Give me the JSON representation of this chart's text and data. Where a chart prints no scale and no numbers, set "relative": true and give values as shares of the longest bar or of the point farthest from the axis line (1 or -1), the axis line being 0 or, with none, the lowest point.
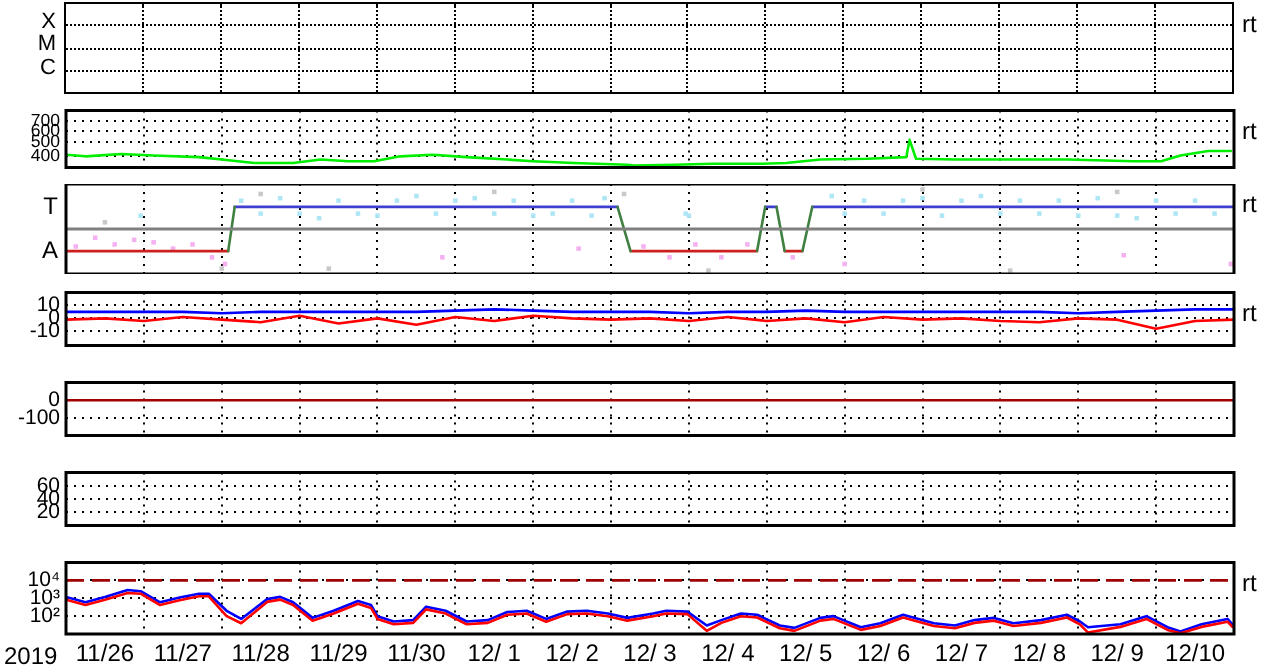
{
  "chart_data": [
    {
      "type": "other",
      "annotations": [
        "X",
        "M",
        "C",
        "rt"
      ]
    },
    {
      "type": "line",
      "xlim": [
        "2019-11-26",
        "2019-12-11"
      ],
      "ylim": [
        335,
        830
      ],
      "log": true,
      "tick_labels": "y",
      "grid": true,
      "yticks": [
        400,
        500,
        600,
        700
      ],
      "xticks": [
        {
          "value": "2019-11-27",
          "label": null
        },
        {
          "value": "2019-11-28",
          "label": null
        },
        {
          "value": "2019-11-29",
          "label": null
        },
        {
          "value": "2019-11-30",
          "label": null
        },
        {
          "value": "2019-12-01",
          "label": null
        },
        {
          "value": "2019-12-02",
          "label": null
        },
        {
          "value": "2019-12-03",
          "label": null
        },
        {
          "value": "2019-12-04",
          "label": null
        },
        {
          "value": "2019-12-05",
          "label": null
        },
        {
          "value": "2019-12-06",
          "label": null
        },
        {
          "value": "2019-12-07",
          "label": null
        },
        {
          "value": "2019-12-08",
          "label": null
        },
        {
          "value": "2019-12-09",
          "label": null
        },
        {
          "value": "2019-12-10",
          "label": null
        }
      ],
      "annotations": [
        "rt"
      ],
      "x": [
        "2019-11-26T00:00",
        "2019-11-26T06:00",
        "2019-11-26T17:00",
        "2019-11-27T03:00",
        "2019-11-27T17:00",
        "2019-11-28T00:00",
        "2019-11-28T10:00",
        "2019-11-28T22:00",
        "2019-11-29T06:30",
        "2019-11-29T15:00",
        "2019-11-29T23:00",
        "2019-11-30T07:00",
        "2019-11-30T17:00",
        "2019-12-01T03:30",
        "2019-12-01T16:00",
        "2019-12-02T00:00",
        "2019-12-02T12:30",
        "2019-12-03T05:00",
        "2019-12-03T07:00",
        "2019-12-03T19:30",
        "2019-12-04T07:30",
        "2019-12-04T22:00",
        "2019-12-05T06:00",
        "2019-12-05T16:30",
        "2019-12-06T07:00",
        "2019-12-06T19:00",
        "2019-12-06T20:00",
        "2019-12-06T22:00",
        "2019-12-07T10:00",
        "2019-12-08T00:00",
        "2019-12-08T20:30",
        "2019-12-09T17:00",
        "2019-12-10T01:30",
        "2019-12-10T07:30",
        "2019-12-10T16:00",
        "2019-12-10T23:00"
      ],
      "series": [
        {
          "color": "#00ee00",
          "values": [
            410,
            400,
            415,
            405,
            395,
            380,
            360,
            360,
            380,
            370,
            370,
            400,
            410,
            395,
            380,
            370,
            360,
            350,
            345,
            350,
            355,
            355,
            360,
            380,
            385,
            395,
            520,
            385,
            380,
            380,
            380,
            370,
            370,
            405,
            435,
            435
          ]
        }
      ]
    },
    {
      "type": "line",
      "xlim": [
        "2019-11-26",
        "2019-12-11"
      ],
      "relative": true,
      "tick_labels": "y",
      "grid": true,
      "xticks": [
        {
          "value": "2019-11-27",
          "label": null
        },
        {
          "value": "2019-11-28",
          "label": null
        },
        {
          "value": "2019-11-29",
          "label": null
        },
        {
          "value": "2019-11-30",
          "label": null
        },
        {
          "value": "2019-12-01",
          "label": null
        },
        {
          "value": "2019-12-02",
          "label": null
        },
        {
          "value": "2019-12-03",
          "label": null
        },
        {
          "value": "2019-12-04",
          "label": null
        },
        {
          "value": "2019-12-05",
          "label": null
        },
        {
          "value": "2019-12-06",
          "label": null
        },
        {
          "value": "2019-12-07",
          "label": null
        },
        {
          "value": "2019-12-08",
          "label": null
        },
        {
          "value": "2019-12-09",
          "label": null
        },
        {
          "value": "2019-12-10",
          "label": null
        }
      ],
      "annotations": [
        "T",
        "A",
        "rt"
      ],
      "series": [
        {
          "type": "scatter",
          "marker": "square",
          "color": "#c8c8c8",
          "x": [
            "2019-11-26T12:00",
            "2019-11-28T00:00",
            "2019-11-28T12:00",
            "2019-11-29T09:00",
            "2019-12-01T12:00",
            "2019-12-03T04:00",
            "2019-12-04T06:00",
            "2019-12-07T00:00",
            "2019-12-08T03:00",
            "2019-12-09T12:00"
          ],
          "values": [
            0.16,
            -0.95,
            0.84,
            -0.95,
            0.89,
            0.84,
            -1,
            0.95,
            -1,
            0.89
          ]
        },
        {
          "type": "scatter",
          "marker": "square",
          "color": "#f4b0f0",
          "x": [
            "2019-11-26T03:00",
            "2019-11-26T09:00",
            "2019-11-26T15:00",
            "2019-11-26T21:00",
            "2019-11-27T03:00",
            "2019-11-27T09:00",
            "2019-11-27T15:00",
            "2019-11-27T21:00",
            "2019-11-28T01:00",
            "2019-11-30T20:00",
            "2019-12-02T14:00",
            "2019-12-03T10:00",
            "2019-12-03T18:00",
            "2019-12-04T02:00",
            "2019-12-04T10:00",
            "2019-12-04T18:00",
            "2019-12-05T08:00",
            "2019-12-06T00:00",
            "2019-12-09T14:00",
            "2019-12-10T23:00"
          ],
          "values": [
            -0.42,
            -0.21,
            -0.37,
            -0.26,
            -0.32,
            -0.47,
            -0.37,
            -0.68,
            -0.84,
            -0.68,
            -0.47,
            -0.42,
            -0.68,
            -0.37,
            -0.68,
            -0.37,
            -0.68,
            -0.84,
            -0.63,
            -0.84
          ]
        },
        {
          "type": "scatter",
          "marker": "square",
          "color": "#aee6f6",
          "x": [
            "2019-11-26T23:00",
            "2019-11-28T06:00",
            "2019-11-28T12:00",
            "2019-11-28T18:00",
            "2019-11-29T00:00",
            "2019-11-29T06:00",
            "2019-11-29T12:00",
            "2019-11-29T18:00",
            "2019-11-30T00:00",
            "2019-11-30T06:00",
            "2019-11-30T12:00",
            "2019-11-30T18:00",
            "2019-12-01T00:00",
            "2019-12-01T06:00",
            "2019-12-01T12:00",
            "2019-12-01T18:00",
            "2019-12-02T00:00",
            "2019-12-02T06:00",
            "2019-12-02T12:00",
            "2019-12-02T18:00",
            "2019-12-02T22:00",
            "2019-12-03T23:00",
            "2019-12-04T00:00",
            "2019-12-05T20:00",
            "2019-12-06T00:00",
            "2019-12-06T06:00",
            "2019-12-06T12:00",
            "2019-12-06T18:00",
            "2019-12-07T00:00",
            "2019-12-07T06:00",
            "2019-12-07T12:00",
            "2019-12-07T18:00",
            "2019-12-08T00:00",
            "2019-12-08T06:00",
            "2019-12-08T12:00",
            "2019-12-08T18:00",
            "2019-12-09T00:00",
            "2019-12-09T06:00",
            "2019-12-09T12:00",
            "2019-12-09T18:00",
            "2019-12-10T00:00",
            "2019-12-10T06:00",
            "2019-12-10T12:00",
            "2019-12-10T18:00"
          ],
          "values": [
            0.32,
            0.68,
            0.37,
            0.74,
            0.37,
            0.26,
            0.68,
            0.37,
            0.32,
            0.68,
            0.79,
            0.37,
            0.68,
            0.74,
            0.37,
            0.68,
            0.32,
            0.37,
            0.68,
            0.32,
            0.74,
            0.37,
            0.32,
            0.79,
            0.37,
            0.68,
            0.37,
            0.68,
            0.74,
            0.32,
            0.68,
            0.79,
            0.37,
            0.68,
            0.37,
            0.68,
            0.32,
            0.74,
            0.32,
            0.26,
            0.68,
            0.37,
            0.68,
            0.37
          ]
        },
        {
          "color": "#cc2020",
          "x": [
            "2019-11-26T00:00",
            "2019-11-28T02:00",
            "2019-11-30T00:00",
            "2019-12-03T06:00",
            "2019-12-04T21:00",
            "2019-12-05T00:00",
            "2019-12-05T05:30",
            "2019-12-05T11:00"
          ],
          "values": [
            -0.53,
            -0.53,
            null,
            -0.53,
            -0.53,
            null,
            -0.53,
            -0.53
          ]
        },
        {
          "color": "#4040d0",
          "x": [
            "2019-11-28T04:00",
            "2019-12-03T02:00",
            "2019-12-03T04:00",
            "2019-12-04T23:30",
            "2019-12-05T03:00",
            "2019-12-05T04:00",
            "2019-12-05T14:00",
            "2019-12-11T00:00"
          ],
          "values": [
            0.53,
            0.53,
            null,
            0.53,
            0.53,
            null,
            0.53,
            0.53
          ]
        },
        {
          "color": "#408040",
          "x": [
            "2019-11-28T02:00",
            "2019-11-28T04:00",
            "2019-11-30T00:00",
            "2019-12-03T02:00",
            "2019-12-03T06:00",
            "2019-12-04T00:00",
            "2019-12-04T21:00",
            "2019-12-04T23:30",
            "2019-12-05T01:00",
            "2019-12-05T03:00",
            "2019-12-05T05:30",
            "2019-12-05T08:00",
            "2019-12-05T11:00",
            "2019-12-05T14:00"
          ],
          "values": [
            -0.53,
            0.53,
            null,
            0.53,
            -0.53,
            null,
            -0.53,
            0.53,
            null,
            0.53,
            -0.53,
            null,
            -0.53,
            0.53
          ]
        }
      ]
    },
    {
      "type": "line",
      "xlim": [
        "2019-11-26",
        "2019-12-11"
      ],
      "ylim": [
        -21,
        20
      ],
      "tick_labels": "y",
      "grid": true,
      "yticks": [
        10,
        0,
        -10
      ],
      "xticks": [
        {
          "value": "2019-11-27",
          "label": null
        },
        {
          "value": "2019-11-28",
          "label": null
        },
        {
          "value": "2019-11-29",
          "label": null
        },
        {
          "value": "2019-11-30",
          "label": null
        },
        {
          "value": "2019-12-01",
          "label": null
        },
        {
          "value": "2019-12-02",
          "label": null
        },
        {
          "value": "2019-12-03",
          "label": null
        },
        {
          "value": "2019-12-04",
          "label": null
        },
        {
          "value": "2019-12-05",
          "label": null
        },
        {
          "value": "2019-12-06",
          "label": null
        },
        {
          "value": "2019-12-07",
          "label": null
        },
        {
          "value": "2019-12-08",
          "label": null
        },
        {
          "value": "2019-12-09",
          "label": null
        },
        {
          "value": "2019-12-10",
          "label": null
        }
      ],
      "annotations": [
        "rt"
      ],
      "x": [
        "2019-11-26T00:00",
        "2019-11-26T12:00",
        "2019-11-27T00:00",
        "2019-11-27T12:00",
        "2019-11-28T00:00",
        "2019-11-28T12:00",
        "2019-11-29T00:00",
        "2019-11-29T12:00",
        "2019-11-30T00:00",
        "2019-11-30T12:00",
        "2019-12-01T00:00",
        "2019-12-01T12:00",
        "2019-12-02T00:00",
        "2019-12-02T12:00",
        "2019-12-03T00:00",
        "2019-12-03T12:00",
        "2019-12-04T00:00",
        "2019-12-04T12:00",
        "2019-12-05T00:00",
        "2019-12-05T12:00",
        "2019-12-06T00:00",
        "2019-12-06T12:00",
        "2019-12-07T00:00",
        "2019-12-07T12:00",
        "2019-12-08T00:00",
        "2019-12-08T12:00",
        "2019-12-09T00:00",
        "2019-12-09T12:00",
        "2019-12-10T00:00",
        "2019-12-10T12:00",
        "2019-12-11T00:00"
      ],
      "series": [
        {
          "color": "#ff0000",
          "values": [
            -1,
            0,
            -2,
            1,
            -1,
            -3,
            2,
            -4,
            0,
            -5,
            1,
            -2,
            2,
            0,
            -1,
            0,
            -2,
            1,
            -2,
            0,
            -3,
            1,
            -1,
            0,
            -2,
            -3,
            0,
            -1,
            -8,
            -2,
            -1
          ]
        },
        {
          "color": "#0000ff",
          "values": [
            5,
            5,
            5,
            5,
            4,
            5,
            5,
            5,
            5,
            5,
            6,
            7,
            6,
            5,
            5,
            5,
            4,
            5,
            5,
            6,
            5,
            5,
            5,
            5,
            5,
            5,
            4,
            5,
            6,
            7,
            7
          ]
        }
      ]
    },
    {
      "type": "line",
      "xlim": [
        "2019-11-26",
        "2019-12-11"
      ],
      "ylim": [
        -200,
        100
      ],
      "tick_labels": "y",
      "grid": true,
      "yticks": [
        0,
        -100
      ],
      "xticks": [
        {
          "value": "2019-11-27",
          "label": null
        },
        {
          "value": "2019-11-28",
          "label": null
        },
        {
          "value": "2019-11-29",
          "label": null
        },
        {
          "value": "2019-11-30",
          "label": null
        },
        {
          "value": "2019-12-01",
          "label": null
        },
        {
          "value": "2019-12-02",
          "label": null
        },
        {
          "value": "2019-12-03",
          "label": null
        },
        {
          "value": "2019-12-04",
          "label": null
        },
        {
          "value": "2019-12-05",
          "label": null
        },
        {
          "value": "2019-12-06",
          "label": null
        },
        {
          "value": "2019-12-07",
          "label": null
        },
        {
          "value": "2019-12-08",
          "label": null
        },
        {
          "value": "2019-12-09",
          "label": null
        },
        {
          "value": "2019-12-10",
          "label": null
        }
      ],
      "series": [
        {
          "color": "#a00000",
          "x": [
            "2019-11-26T00:00",
            "2019-12-11T00:00"
          ],
          "values": [
            0,
            0
          ]
        }
      ]
    },
    {
      "type": "line",
      "xlim": [
        "2019-11-26",
        "2019-12-11"
      ],
      "ylim": [
        0,
        80
      ],
      "tick_labels": "y",
      "grid": true,
      "yticks": [
        60,
        40,
        20
      ],
      "xticks": [
        {
          "value": "2019-11-27",
          "label": null
        },
        {
          "value": "2019-11-28",
          "label": null
        },
        {
          "value": "2019-11-29",
          "label": null
        },
        {
          "value": "2019-11-30",
          "label": null
        },
        {
          "value": "2019-12-01",
          "label": null
        },
        {
          "value": "2019-12-02",
          "label": null
        },
        {
          "value": "2019-12-03",
          "label": null
        },
        {
          "value": "2019-12-04",
          "label": null
        },
        {
          "value": "2019-12-05",
          "label": null
        },
        {
          "value": "2019-12-06",
          "label": null
        },
        {
          "value": "2019-12-07",
          "label": null
        },
        {
          "value": "2019-12-08",
          "label": null
        },
        {
          "value": "2019-12-09",
          "label": null
        },
        {
          "value": "2019-12-10",
          "label": null
        }
      ]
    },
    {
      "type": "line",
      "xlim": [
        "2019-11-26",
        "2019-12-11"
      ],
      "ylim": [
        10,
        100000
      ],
      "log": true,
      "grid": true,
      "xlabel": "2019",
      "yticks": [
        {
          "value": 10000,
          "label": "10⁴"
        },
        {
          "value": 1000,
          "label": "10³"
        },
        {
          "value": 100,
          "label": "10²"
        }
      ],
      "xticks": [
        {
          "value": "2019-11-26T12:00",
          "label": "11/26"
        },
        {
          "value": "2019-11-27",
          "label": null
        },
        {
          "value": "2019-11-27T12:00",
          "label": "11/27"
        },
        {
          "value": "2019-11-28",
          "label": null
        },
        {
          "value": "2019-11-28T12:00",
          "label": "11/28"
        },
        {
          "value": "2019-11-29",
          "label": null
        },
        {
          "value": "2019-11-29T12:00",
          "label": "11/29"
        },
        {
          "value": "2019-11-30",
          "label": null
        },
        {
          "value": "2019-11-30T12:00",
          "label": "11/30"
        },
        {
          "value": "2019-12-01",
          "label": null
        },
        {
          "value": "2019-12-01T12:00",
          "label": "12/ 1"
        },
        {
          "value": "2019-12-02",
          "label": null
        },
        {
          "value": "2019-12-02T12:00",
          "label": "12/ 2"
        },
        {
          "value": "2019-12-03",
          "label": null
        },
        {
          "value": "2019-12-03T12:00",
          "label": "12/ 3"
        },
        {
          "value": "2019-12-04",
          "label": null
        },
        {
          "value": "2019-12-04T12:00",
          "label": "12/ 4"
        },
        {
          "value": "2019-12-05",
          "label": null
        },
        {
          "value": "2019-12-05T12:00",
          "label": "12/ 5"
        },
        {
          "value": "2019-12-06",
          "label": null
        },
        {
          "value": "2019-12-06T12:00",
          "label": "12/ 6"
        },
        {
          "value": "2019-12-07",
          "label": null
        },
        {
          "value": "2019-12-07T12:00",
          "label": "12/ 7"
        },
        {
          "value": "2019-12-08",
          "label": null
        },
        {
          "value": "2019-12-08T12:00",
          "label": "12/ 8"
        },
        {
          "value": "2019-12-09",
          "label": null
        },
        {
          "value": "2019-12-09T12:00",
          "label": "12/ 9"
        },
        {
          "value": "2019-12-10",
          "label": null
        },
        {
          "value": "2019-12-10T12:00",
          "label": "12/10"
        }
      ],
      "annotations": [
        "rt"
      ],
      "ref_lines": [
        {
          "axis": "y",
          "value": 10000,
          "color": "#a00000",
          "line_style": "dashed"
        }
      ],
      "x": [
        "2019-11-26T00:00",
        "2019-11-26T06:00",
        "2019-11-26T12:00",
        "2019-11-26T19:00",
        "2019-11-26T23:00",
        "2019-11-27T05:00",
        "2019-11-27T11:00",
        "2019-11-27T17:00",
        "2019-11-27T20:00",
        "2019-11-28T01:30",
        "2019-11-28T06:00",
        "2019-11-28T14:00",
        "2019-11-28T18:00",
        "2019-11-28T22:00",
        "2019-11-29T04:00",
        "2019-11-29T10:30",
        "2019-11-29T18:00",
        "2019-11-29T22:00",
        "2019-11-30T00:00",
        "2019-11-30T05:00",
        "2019-11-30T11:00",
        "2019-11-30T15:00",
        "2019-11-30T21:00",
        "2019-12-01T03:30",
        "2019-12-01T10:00",
        "2019-12-01T16:00",
        "2019-12-01T22:00",
        "2019-12-02T04:00",
        "2019-12-02T10:30",
        "2019-12-02T16:30",
        "2019-12-02T23:00",
        "2019-12-03T05:00",
        "2019-12-03T13:00",
        "2019-12-03T17:00",
        "2019-12-03T23:30",
        "2019-12-04T05:30",
        "2019-12-04T10:00",
        "2019-12-04T16:00",
        "2019-12-04T21:00",
        "2019-12-05T04:00",
        "2019-12-05T08:30",
        "2019-12-05T16:30",
        "2019-12-05T20:30",
        "2019-12-06T05:00",
        "2019-12-06T11:00",
        "2019-12-06T18:00",
        "2019-12-07T03:30",
        "2019-12-07T10:00",
        "2019-12-07T16:00",
        "2019-12-07T22:00",
        "2019-12-08T04:00",
        "2019-12-08T12:30",
        "2019-12-08T20:30",
        "2019-12-09T00:30",
        "2019-12-09T03:00",
        "2019-12-09T13:00",
        "2019-12-09T21:00",
        "2019-12-10T03:30",
        "2019-12-10T07:30",
        "2019-12-10T14:00",
        "2019-12-10T22:00",
        "2019-12-10T23:30"
      ],
      "series": [
        {
          "color": "#0000ff",
          "values": [
            1200,
            600,
            1200,
            2900,
            2500,
            600,
            1100,
            1800,
            1800,
            200,
            70,
            900,
            1200,
            600,
            80,
            200,
            700,
            420,
            100,
            50,
            60,
            340,
            200,
            50,
            60,
            170,
            200,
            70,
            180,
            200,
            140,
            80,
            140,
            200,
            180,
            30,
            60,
            140,
            120,
            30,
            22,
            80,
            100,
            24,
            40,
            120,
            40,
            30,
            60,
            80,
            40,
            60,
            120,
            50,
            24,
            35,
            100,
            24,
            14,
            35,
            70,
            35
          ]
        },
        {
          "color": "#ff0000",
          "values": [
            840,
            420,
            840,
            2000,
            1800,
            420,
            770,
            1300,
            1300,
            100,
            40,
            630,
            840,
            420,
            56,
            140,
            490,
            290,
            70,
            35,
            42,
            240,
            140,
            35,
            42,
            120,
            140,
            49,
            130,
            140,
            98,
            56,
            98,
            140,
            130,
            15,
            42,
            98,
            84,
            21,
            15,
            56,
            70,
            17,
            28,
            84,
            28,
            21,
            42,
            56,
            28,
            42,
            84,
            35,
            12,
            25,
            70,
            17,
            11,
            25,
            49,
            25
          ]
        }
      ]
    }
  ]
}
